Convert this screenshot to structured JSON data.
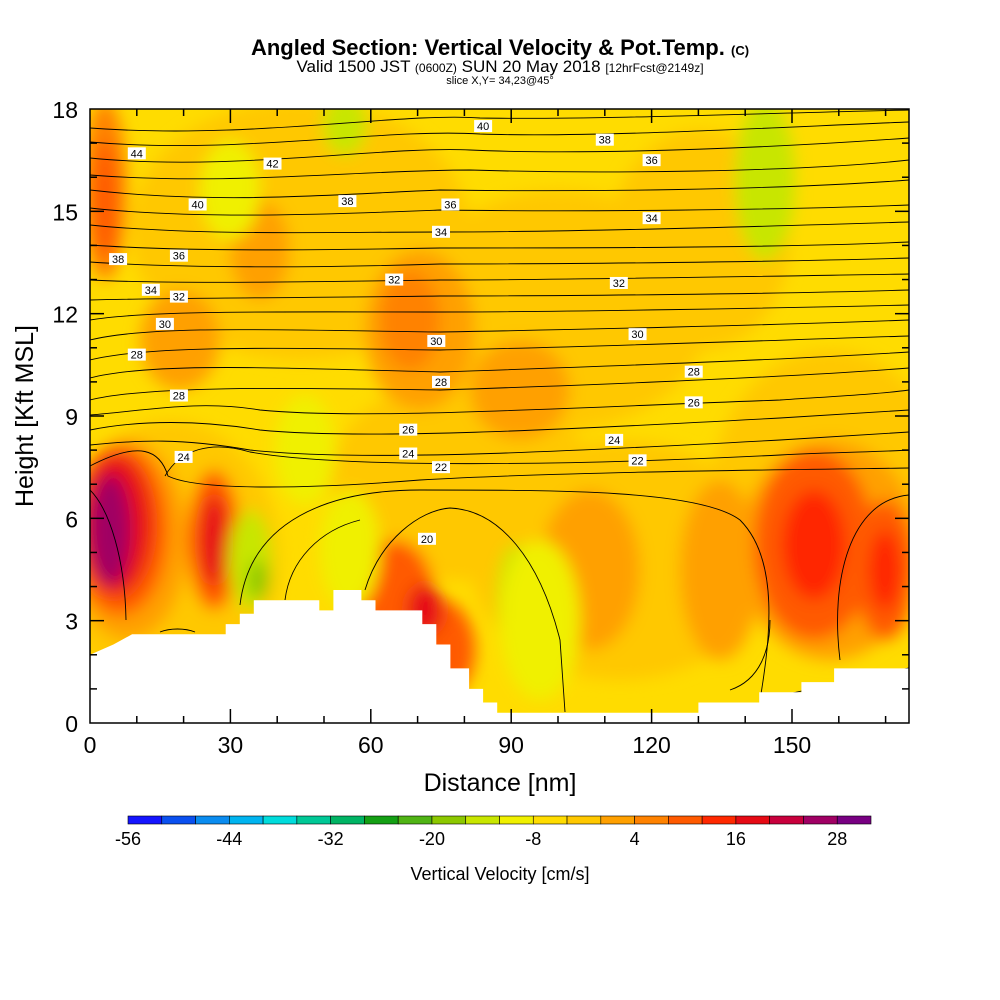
{
  "header": {
    "title_main": "Angled Section: Vertical Velocity & Pot.Temp.",
    "title_mark": "(C)",
    "subtitle_pre": "Valid 1500 JST",
    "subtitle_small1": "(0600Z)",
    "subtitle_mid": "SUN 20 May 2018",
    "subtitle_small2": "[12hrFcst@2149z]",
    "slice": "slice X,Y= 34,23@45°"
  },
  "chart_data": {
    "type": "heatmap",
    "xlabel": "Distance [nm]",
    "ylabel": "Height [Kft MSL]",
    "xlim": [
      0,
      175
    ],
    "ylim": [
      0,
      18
    ],
    "x_ticks": [
      0,
      30,
      60,
      90,
      120,
      150
    ],
    "y_ticks": [
      0,
      3,
      6,
      9,
      12,
      15,
      18
    ],
    "colorbar": {
      "label": "Vertical Velocity [cm/s]",
      "tick_labels": [
        -56,
        -44,
        -32,
        -20,
        -8,
        4,
        16,
        28
      ],
      "levels": [
        -56,
        -52,
        -48,
        -44,
        -40,
        -36,
        -32,
        -28,
        -24,
        -20,
        -16,
        -12,
        -8,
        -4,
        0,
        4,
        8,
        12,
        16,
        20,
        24,
        28,
        32
      ],
      "colors": [
        "#1414ff",
        "#0a50f0",
        "#0a8cf0",
        "#00b4f0",
        "#00dcdc",
        "#00c896",
        "#00b464",
        "#14a014",
        "#50b414",
        "#8cc800",
        "#c8e600",
        "#f0f000",
        "#ffdc00",
        "#ffc800",
        "#ffa000",
        "#ff8200",
        "#ff5a00",
        "#ff2800",
        "#e60a14",
        "#c8003c",
        "#a00064",
        "#780082"
      ]
    },
    "terrain_profile": [
      [
        0,
        2.0
      ],
      [
        5,
        2.3
      ],
      [
        9,
        2.6
      ],
      [
        29,
        2.6
      ],
      [
        29,
        2.9
      ],
      [
        32,
        2.9
      ],
      [
        32,
        3.2
      ],
      [
        35,
        3.2
      ],
      [
        35,
        3.6
      ],
      [
        49,
        3.6
      ],
      [
        49,
        3.3
      ],
      [
        52,
        3.3
      ],
      [
        52,
        3.9
      ],
      [
        58,
        3.9
      ],
      [
        58,
        3.6
      ],
      [
        61,
        3.6
      ],
      [
        61,
        3.3
      ],
      [
        71,
        3.3
      ],
      [
        71,
        2.9
      ],
      [
        74,
        2.9
      ],
      [
        74,
        2.3
      ],
      [
        77,
        2.3
      ],
      [
        77,
        1.6
      ],
      [
        81,
        1.6
      ],
      [
        81,
        1.0
      ],
      [
        84,
        1.0
      ],
      [
        84,
        0.6
      ],
      [
        87,
        0.6
      ],
      [
        87,
        0.3
      ],
      [
        130,
        0.3
      ],
      [
        130,
        0.6
      ],
      [
        143,
        0.6
      ],
      [
        143,
        0.9
      ],
      [
        152,
        0.9
      ],
      [
        152,
        1.2
      ],
      [
        159,
        1.2
      ],
      [
        159,
        1.6
      ],
      [
        175,
        1.6
      ]
    ],
    "contour_labels": [
      {
        "text": "44",
        "x": 10,
        "y": 16.7
      },
      {
        "text": "42",
        "x": 39,
        "y": 16.4
      },
      {
        "text": "40",
        "x": 84,
        "y": 17.5
      },
      {
        "text": "38",
        "x": 110,
        "y": 17.1
      },
      {
        "text": "36",
        "x": 120,
        "y": 16.5
      },
      {
        "text": "40",
        "x": 23,
        "y": 15.2
      },
      {
        "text": "38",
        "x": 55,
        "y": 15.3
      },
      {
        "text": "36",
        "x": 77,
        "y": 15.2
      },
      {
        "text": "34",
        "x": 120,
        "y": 14.8
      },
      {
        "text": "34",
        "x": 75,
        "y": 14.4
      },
      {
        "text": "38",
        "x": 6,
        "y": 13.6
      },
      {
        "text": "36",
        "x": 19,
        "y": 13.7
      },
      {
        "text": "34",
        "x": 13,
        "y": 12.7
      },
      {
        "text": "32",
        "x": 19,
        "y": 12.5
      },
      {
        "text": "32",
        "x": 65,
        "y": 13.0
      },
      {
        "text": "32",
        "x": 113,
        "y": 12.9
      },
      {
        "text": "30",
        "x": 16,
        "y": 11.7
      },
      {
        "text": "30",
        "x": 74,
        "y": 11.2
      },
      {
        "text": "30",
        "x": 117,
        "y": 11.4
      },
      {
        "text": "28",
        "x": 10,
        "y": 10.8
      },
      {
        "text": "28",
        "x": 75,
        "y": 10.0
      },
      {
        "text": "28",
        "x": 129,
        "y": 10.3
      },
      {
        "text": "28",
        "x": 19,
        "y": 9.6
      },
      {
        "text": "26",
        "x": 129,
        "y": 9.4
      },
      {
        "text": "26",
        "x": 68,
        "y": 8.6
      },
      {
        "text": "24",
        "x": 112,
        "y": 8.3
      },
      {
        "text": "24",
        "x": 20,
        "y": 7.8
      },
      {
        "text": "24",
        "x": 68,
        "y": 7.9
      },
      {
        "text": "22",
        "x": 75,
        "y": 7.5
      },
      {
        "text": "22",
        "x": 117,
        "y": 7.7
      },
      {
        "text": "20",
        "x": 72,
        "y": 5.4
      }
    ]
  }
}
